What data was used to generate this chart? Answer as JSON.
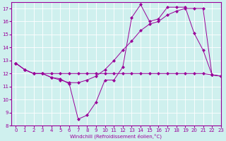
{
  "xlabel": "Windchill (Refroidissement éolien,°C)",
  "background_color": "#cff0ee",
  "line_color": "#990099",
  "ylim": [
    8,
    17.5
  ],
  "xlim": [
    -0.5,
    23
  ],
  "yticks": [
    8,
    9,
    10,
    11,
    12,
    13,
    14,
    15,
    16,
    17
  ],
  "xticks": [
    0,
    1,
    2,
    3,
    4,
    5,
    6,
    7,
    8,
    9,
    10,
    11,
    12,
    13,
    14,
    15,
    16,
    17,
    18,
    19,
    20,
    21,
    22,
    23
  ],
  "series1_x": [
    0,
    1,
    2,
    3,
    4,
    5,
    6,
    7,
    8,
    9,
    10,
    11,
    12,
    13,
    14,
    15,
    16,
    17,
    18,
    19,
    20,
    21,
    22,
    23
  ],
  "series1_y": [
    12.8,
    12.3,
    12.0,
    12.0,
    11.7,
    11.6,
    11.2,
    8.5,
    8.8,
    9.8,
    11.5,
    11.5,
    12.5,
    16.3,
    17.3,
    16.0,
    16.2,
    17.1,
    17.1,
    17.1,
    15.1,
    13.8,
    11.9,
    11.8
  ],
  "series2_x": [
    0,
    1,
    2,
    3,
    4,
    5,
    6,
    7,
    8,
    9,
    10,
    11,
    12,
    13,
    14,
    15,
    16,
    17,
    18,
    19,
    20,
    21,
    22,
    23
  ],
  "series2_y": [
    12.8,
    12.3,
    12.0,
    12.0,
    12.0,
    12.0,
    12.0,
    12.0,
    12.0,
    12.0,
    12.0,
    12.0,
    12.0,
    12.0,
    12.0,
    12.0,
    12.0,
    12.0,
    12.0,
    12.0,
    12.0,
    12.0,
    11.9,
    11.8
  ],
  "series3_x": [
    0,
    1,
    2,
    3,
    4,
    5,
    6,
    7,
    8,
    9,
    10,
    11,
    12,
    13,
    14,
    15,
    16,
    17,
    18,
    19,
    20,
    21,
    22,
    23
  ],
  "series3_y": [
    12.8,
    12.3,
    12.0,
    12.0,
    11.7,
    11.5,
    11.3,
    11.3,
    11.5,
    11.8,
    12.3,
    13.0,
    13.8,
    14.5,
    15.3,
    15.8,
    16.0,
    16.5,
    16.8,
    17.0,
    17.0,
    17.0,
    11.9,
    11.8
  ]
}
